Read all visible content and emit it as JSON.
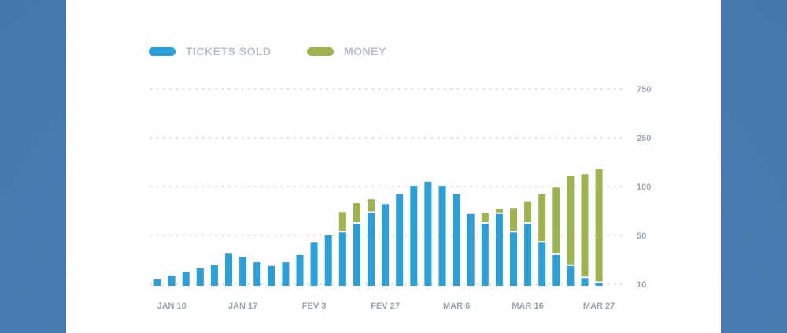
{
  "colors": {
    "background": "#4a7db3",
    "card": "#ffffff",
    "tickets": "#2ba0d8",
    "money": "#9db44f",
    "grid": "#c9d2dc",
    "axis_text": "#9aa6b4",
    "legend_text": "#b6c0cc"
  },
  "legend": [
    {
      "label": "TICKETS SOLD",
      "color": "#2ba0d8"
    },
    {
      "label": "MONEY",
      "color": "#9db44f"
    }
  ],
  "chart_data": {
    "type": "bar",
    "stacked": true,
    "grid": "horizontal dotted",
    "legend_position": "top-left",
    "y_axis_position": "right",
    "yticks": [
      "10",
      "50",
      "100",
      "250",
      "750"
    ],
    "xtick_labels": [
      "JAN 10",
      "JAN 17",
      "FEV 3",
      "FEV 27",
      "MAR 6",
      "MAR 16",
      "MAR 27"
    ],
    "xtick_bar_index": [
      1,
      6,
      11,
      16,
      21,
      26,
      31
    ],
    "series": [
      {
        "name": "TICKETS SOLD",
        "color": "#2ba0d8",
        "values": [
          14,
          17,
          20,
          23,
          26,
          35,
          32,
          28,
          25,
          28,
          34,
          44,
          50,
          53,
          62,
          73,
          82,
          92,
          102,
          115,
          102,
          92,
          72,
          62,
          72,
          53,
          62,
          44,
          34,
          25,
          15,
          11
        ]
      },
      {
        "name": "MONEY",
        "color": "#9db44f",
        "values": [
          0,
          0,
          0,
          0,
          0,
          0,
          0,
          0,
          0,
          0,
          0,
          0,
          0,
          21,
          21,
          14,
          0,
          0,
          0,
          0,
          0,
          0,
          0,
          11,
          5,
          25,
          23,
          48,
          65,
          107,
          123,
          142
        ]
      }
    ]
  }
}
